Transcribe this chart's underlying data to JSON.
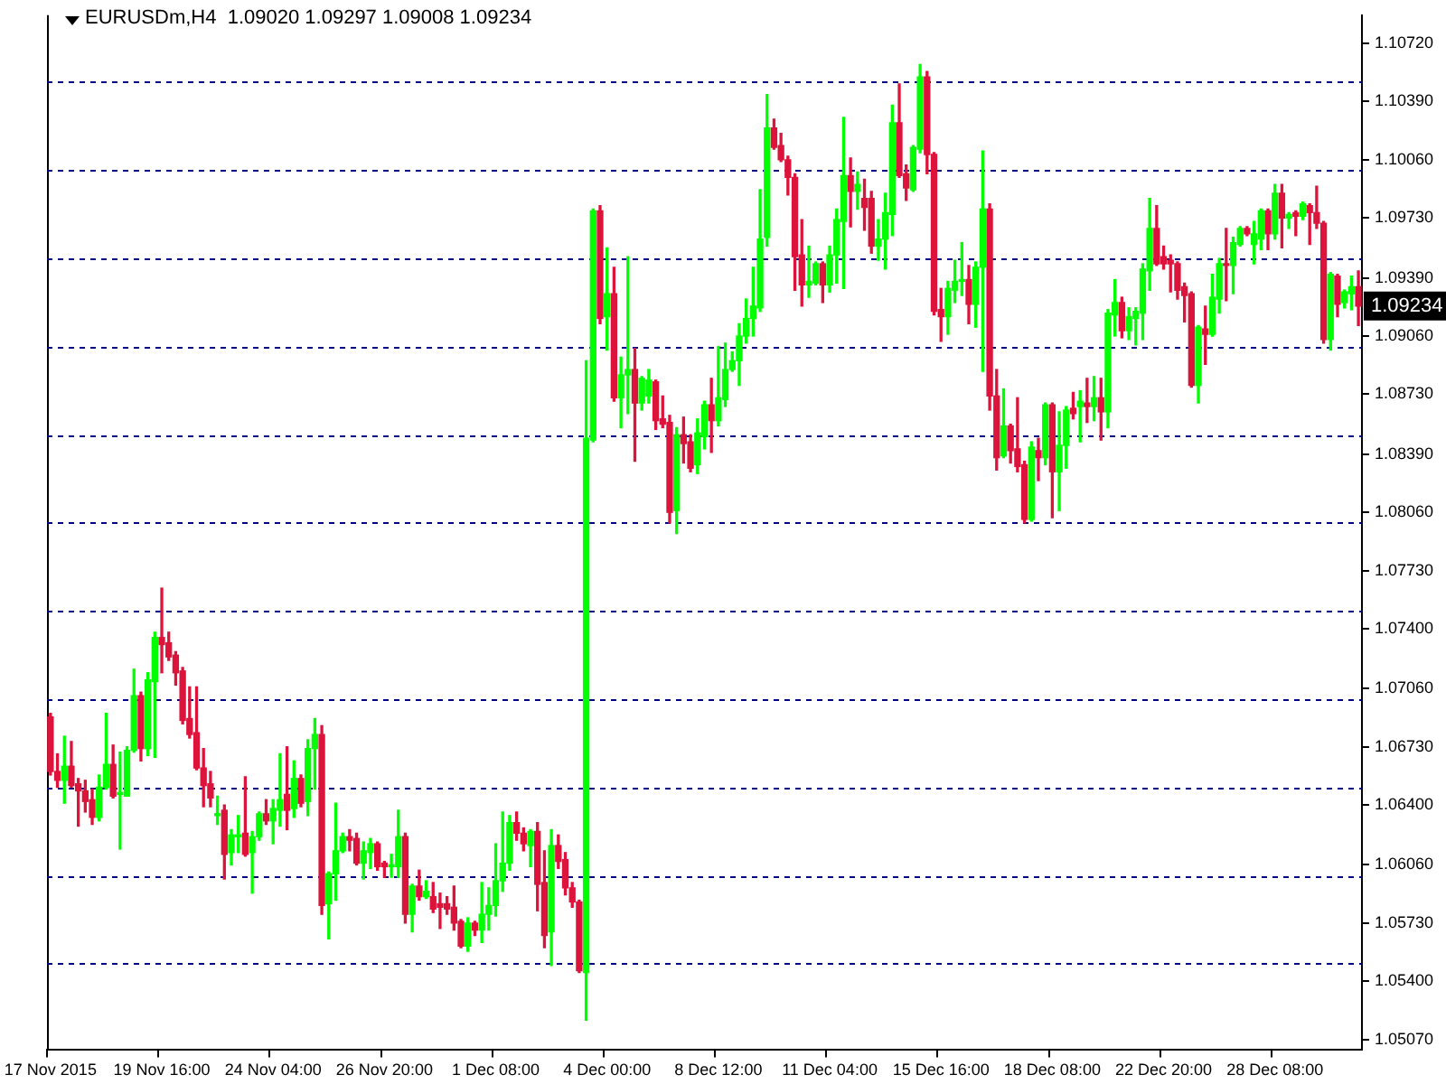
{
  "chart_data": {
    "type": "candlestick",
    "title": "EURUSDm,H4  1.09020 1.09297 1.09008 1.09234",
    "categories": [
      "17 Nov 2015",
      null,
      null,
      null,
      null,
      null,
      null,
      null,
      null,
      null,
      null,
      null,
      null,
      null,
      null,
      null,
      "19 Nov 16:00",
      null,
      null,
      null,
      null,
      null,
      null,
      null,
      null,
      null,
      null,
      null,
      null,
      null,
      null,
      null,
      "24 Nov 04:00",
      null,
      null,
      null,
      null,
      null,
      null,
      null,
      null,
      null,
      null,
      null,
      null,
      null,
      null,
      null,
      "26 Nov 20:00",
      null,
      null,
      null,
      null,
      null,
      null,
      null,
      null,
      null,
      null,
      null,
      null,
      null,
      null,
      null,
      "1 Dec 08:00",
      null,
      null,
      null,
      null,
      null,
      null,
      null,
      null,
      null,
      null,
      null,
      null,
      null,
      null,
      null,
      "4 Dec 00:00",
      null,
      null,
      null,
      null,
      null,
      null,
      null,
      null,
      null,
      null,
      null,
      null,
      null,
      null,
      null,
      "8 Dec 12:00",
      null,
      null,
      null,
      null,
      null,
      null,
      null,
      null,
      null,
      null,
      null,
      null,
      null,
      null,
      null,
      "11 Dec 04:00",
      null,
      null,
      null,
      null,
      null,
      null,
      null,
      null,
      null,
      null,
      null,
      null,
      null,
      null,
      null,
      "15 Dec 16:00",
      null,
      null,
      null,
      null,
      null,
      null,
      null,
      null,
      null,
      null,
      null,
      null,
      null,
      null,
      null,
      "18 Dec 08:00",
      null,
      null,
      null,
      null,
      null,
      null,
      null,
      null,
      null,
      null,
      null,
      null,
      null,
      null,
      null,
      "22 Dec 20:00",
      null,
      null,
      null,
      null,
      null,
      null,
      null,
      null,
      null,
      null,
      null,
      null,
      null,
      null,
      null,
      "28 Dec 08:00",
      null,
      null,
      null,
      null,
      null,
      null,
      null,
      null,
      null,
      null,
      null,
      null
    ],
    "ohlc": [
      [
        1.069,
        1.0692,
        1.0657,
        1.0659
      ],
      [
        1.0659,
        1.0669,
        1.065,
        1.0654
      ],
      [
        1.0654,
        1.0679,
        1.0641,
        1.0662
      ],
      [
        1.0662,
        1.0676,
        1.065,
        1.0651
      ],
      [
        1.0652,
        1.0655,
        1.0628,
        1.0648
      ],
      [
        1.0648,
        1.0654,
        1.0636,
        1.0642
      ],
      [
        1.0643,
        1.0649,
        1.0629,
        1.0633
      ],
      [
        1.0633,
        1.0657,
        1.0631,
        1.065
      ],
      [
        1.065,
        1.0692,
        1.0649,
        1.0663
      ],
      [
        1.0663,
        1.0674,
        1.0644,
        1.0645
      ],
      [
        1.0646,
        1.067,
        1.0615,
        1.0647
      ],
      [
        1.0645,
        1.0673,
        1.0645,
        1.0671
      ],
      [
        1.0671,
        1.0717,
        1.067,
        1.0702
      ],
      [
        1.0702,
        1.0704,
        1.0665,
        1.0672
      ],
      [
        1.0672,
        1.0715,
        1.0668,
        1.0711
      ],
      [
        1.071,
        1.0738,
        1.0667,
        1.0735
      ],
      [
        1.0735,
        1.0763,
        1.0715,
        1.0731
      ],
      [
        1.0732,
        1.0738,
        1.0722,
        1.0724
      ],
      [
        1.0725,
        1.0727,
        1.0708,
        1.0715
      ],
      [
        1.0716,
        1.0718,
        1.0686,
        1.0688
      ],
      [
        1.0689,
        1.0707,
        1.0678,
        1.068
      ],
      [
        1.0681,
        1.0707,
        1.066,
        1.0661
      ],
      [
        1.0661,
        1.0672,
        1.0639,
        1.0651
      ],
      [
        1.0652,
        1.0659,
        1.0639,
        1.0644
      ],
      [
        1.0634,
        1.0645,
        1.0629,
        1.0635
      ],
      [
        1.0637,
        1.064,
        1.0598,
        1.0612
      ],
      [
        1.0613,
        1.0626,
        1.0606,
        1.0623
      ],
      [
        1.0622,
        1.0634,
        1.0613,
        1.0623
      ],
      [
        1.0624,
        1.0656,
        1.0611,
        1.0612
      ],
      [
        1.0613,
        1.0625,
        1.059,
        1.0622
      ],
      [
        1.0622,
        1.0636,
        1.062,
        1.0635
      ],
      [
        1.0635,
        1.0643,
        1.0629,
        1.0631
      ],
      [
        1.0631,
        1.0643,
        1.0618,
        1.0638
      ],
      [
        1.0637,
        1.0669,
        1.0628,
        1.0643
      ],
      [
        1.0646,
        1.0673,
        1.0626,
        1.0637
      ],
      [
        1.0638,
        1.0665,
        1.0633,
        1.0655
      ],
      [
        1.0655,
        1.0657,
        1.0639,
        1.0641
      ],
      [
        1.0642,
        1.0677,
        1.0634,
        1.0672
      ],
      [
        1.0672,
        1.0689,
        1.0649,
        1.068
      ],
      [
        1.068,
        1.0685,
        1.0578,
        1.0583
      ],
      [
        1.0584,
        1.0602,
        1.0564,
        1.0601
      ],
      [
        1.0601,
        1.0641,
        1.0586,
        1.0614
      ],
      [
        1.0614,
        1.0624,
        1.0613,
        1.0622
      ],
      [
        1.0622,
        1.0626,
        1.0614,
        1.062
      ],
      [
        1.0621,
        1.0624,
        1.0606,
        1.0607
      ],
      [
        1.0607,
        1.0619,
        1.0598,
        1.0614
      ],
      [
        1.0613,
        1.0621,
        1.0604,
        1.0618
      ],
      [
        1.0618,
        1.0619,
        1.0603,
        1.0605
      ],
      [
        1.0607,
        1.0608,
        1.0599,
        1.0605
      ],
      [
        1.0605,
        1.0612,
        1.0599,
        1.0606
      ],
      [
        1.0605,
        1.0637,
        1.0599,
        1.0622
      ],
      [
        1.0622,
        1.0624,
        1.0573,
        1.0578
      ],
      [
        1.0578,
        1.0595,
        1.0568,
        1.0594
      ],
      [
        1.0594,
        1.0603,
        1.0586,
        1.0588
      ],
      [
        1.0588,
        1.0597,
        1.0587,
        1.0591
      ],
      [
        1.0588,
        1.0596,
        1.0579,
        1.0581
      ],
      [
        1.0584,
        1.059,
        1.057,
        1.0582
      ],
      [
        1.0584,
        1.0588,
        1.0578,
        1.0581
      ],
      [
        1.0582,
        1.0594,
        1.0569,
        1.0573
      ],
      [
        1.0574,
        1.0575,
        1.0559,
        1.056
      ],
      [
        1.056,
        1.0576,
        1.0557,
        1.0573
      ],
      [
        1.0573,
        1.0574,
        1.0566,
        1.0569
      ],
      [
        1.0569,
        1.0596,
        1.0562,
        1.0578
      ],
      [
        1.0578,
        1.0593,
        1.0569,
        1.0583
      ],
      [
        1.0583,
        1.0618,
        1.0577,
        1.0597
      ],
      [
        1.0597,
        1.0636,
        1.0591,
        1.0607
      ],
      [
        1.0607,
        1.0634,
        1.0603,
        1.063
      ],
      [
        1.063,
        1.0636,
        1.062,
        1.0624
      ],
      [
        1.0624,
        1.0627,
        1.0614,
        1.0618
      ],
      [
        1.0617,
        1.0626,
        1.0605,
        1.0625
      ],
      [
        1.0625,
        1.063,
        1.058,
        1.0595
      ],
      [
        1.0596,
        1.0614,
        1.0559,
        1.0566
      ],
      [
        1.0568,
        1.0626,
        1.0549,
        1.0617
      ],
      [
        1.0617,
        1.0623,
        1.0604,
        1.0608
      ],
      [
        1.0609,
        1.0613,
        1.0589,
        1.0593
      ],
      [
        1.0593,
        1.0596,
        1.0582,
        1.0585
      ],
      [
        1.0585,
        1.0586,
        1.0545,
        1.0546
      ],
      [
        1.0545,
        1.0892,
        1.0518,
        1.0848
      ],
      [
        1.0847,
        1.0978,
        1.0846,
        1.0977
      ],
      [
        1.0977,
        1.098,
        1.0913,
        1.0916
      ],
      [
        1.0917,
        1.0956,
        1.0898,
        1.093
      ],
      [
        1.093,
        1.0945,
        1.0869,
        1.0871
      ],
      [
        1.0871,
        1.0894,
        1.0854,
        1.0884
      ],
      [
        1.0884,
        1.0951,
        1.0862,
        1.0887
      ],
      [
        1.0887,
        1.0899,
        1.0835,
        1.0868
      ],
      [
        1.0868,
        1.0883,
        1.0864,
        1.0882
      ],
      [
        1.0872,
        1.0887,
        1.0868,
        1.0881
      ],
      [
        1.088,
        1.0881,
        1.0853,
        1.0858
      ],
      [
        1.0859,
        1.0872,
        1.0854,
        1.0856
      ],
      [
        1.0857,
        1.0861,
        1.08,
        1.0806
      ],
      [
        1.0807,
        1.0854,
        1.0794,
        1.085
      ],
      [
        1.085,
        1.086,
        1.0834,
        1.0845
      ],
      [
        1.0846,
        1.085,
        1.0829,
        1.0831
      ],
      [
        1.0833,
        1.0859,
        1.0828,
        1.0851
      ],
      [
        1.0849,
        1.0869,
        1.0842,
        1.0867
      ],
      [
        1.0867,
        1.0882,
        1.084,
        1.0858
      ],
      [
        1.0858,
        1.09,
        1.0855,
        1.0871
      ],
      [
        1.087,
        1.0902,
        1.0866,
        1.0887
      ],
      [
        1.0887,
        1.0897,
        1.0886,
        1.0892
      ],
      [
        1.0892,
        1.0913,
        1.0878,
        1.0906
      ],
      [
        1.0906,
        1.0927,
        1.0902,
        1.0916
      ],
      [
        1.0916,
        1.0945,
        1.0906,
        1.0923
      ],
      [
        1.0922,
        1.0989,
        1.092,
        1.0961
      ],
      [
        1.0962,
        1.1043,
        1.0957,
        1.1024
      ],
      [
        1.1024,
        1.1029,
        1.1012,
        1.1013
      ],
      [
        1.1014,
        1.1021,
        1.1005,
        1.1006
      ],
      [
        1.1006,
        1.1008,
        1.0986,
        1.0996
      ],
      [
        1.0996,
        1.0998,
        1.0932,
        1.0951
      ],
      [
        1.0952,
        1.0972,
        1.0923,
        1.0935
      ],
      [
        1.0935,
        1.0957,
        1.0928,
        1.0937
      ],
      [
        1.0936,
        1.0948,
        1.0935,
        1.0947
      ],
      [
        1.0947,
        1.0948,
        1.0925,
        1.0935
      ],
      [
        1.0935,
        1.0957,
        1.0931,
        1.0952
      ],
      [
        1.0952,
        1.0978,
        1.0936,
        1.0972
      ],
      [
        1.0971,
        1.103,
        1.0933,
        1.0997
      ],
      [
        1.0997,
        1.1007,
        1.0968,
        1.0988
      ],
      [
        1.0988,
        1.0999,
        1.0978,
        1.0992
      ],
      [
        1.0984,
        1.0995,
        1.0966,
        1.0979
      ],
      [
        1.0984,
        1.0988,
        1.0953,
        1.0957
      ],
      [
        1.0957,
        1.0972,
        1.0949,
        1.0961
      ],
      [
        1.0961,
        1.0987,
        1.0944,
        1.0976
      ],
      [
        1.0975,
        1.1037,
        1.0963,
        1.1027
      ],
      [
        1.1027,
        1.1049,
        1.0996,
        1.0997
      ],
      [
        1.0998,
        1.1003,
        1.0983,
        1.099
      ],
      [
        1.0989,
        1.1014,
        1.0988,
        1.1013
      ],
      [
        1.1012,
        1.106,
        1.101,
        1.1053
      ],
      [
        1.1053,
        1.1056,
        1.0998,
        1.1009
      ],
      [
        1.1009,
        1.101,
        1.0918,
        1.092
      ],
      [
        1.0921,
        1.0933,
        1.0903,
        1.0917
      ],
      [
        1.0917,
        1.0937,
        1.0907,
        1.0933
      ],
      [
        1.0932,
        1.0949,
        1.0925,
        1.0937
      ],
      [
        1.0937,
        1.0959,
        1.0929,
        1.0938
      ],
      [
        1.0938,
        1.0946,
        1.0913,
        1.0924
      ],
      [
        1.0924,
        1.0948,
        1.0911,
        1.0945
      ],
      [
        1.0945,
        1.1011,
        1.0886,
        1.0978
      ],
      [
        1.0978,
        1.0981,
        1.0864,
        1.0872
      ],
      [
        1.0872,
        1.0887,
        1.083,
        1.0837
      ],
      [
        1.0838,
        1.0876,
        1.0837,
        1.0855
      ],
      [
        1.0855,
        1.0856,
        1.0834,
        1.0841
      ],
      [
        1.0842,
        1.0871,
        1.0829,
        1.0832
      ],
      [
        1.0833,
        1.0835,
        1.08,
        1.0802
      ],
      [
        1.0802,
        1.0846,
        1.0801,
        1.0843
      ],
      [
        1.0841,
        1.0848,
        1.0824,
        1.0837
      ],
      [
        1.0837,
        1.0868,
        1.0833,
        1.0867
      ],
      [
        1.0867,
        1.0868,
        1.0803,
        1.0829
      ],
      [
        1.0829,
        1.0863,
        1.0807,
        1.0844
      ],
      [
        1.0844,
        1.0866,
        1.0831,
        1.0864
      ],
      [
        1.0865,
        1.0874,
        1.0859,
        1.0862
      ],
      [
        1.0866,
        1.0875,
        1.0846,
        1.0869
      ],
      [
        1.0868,
        1.0882,
        1.0857,
        1.0866
      ],
      [
        1.0866,
        1.0883,
        1.0858,
        1.0871
      ],
      [
        1.0871,
        1.0882,
        1.0847,
        1.0863
      ],
      [
        1.0863,
        1.0921,
        1.0854,
        1.0919
      ],
      [
        1.0918,
        1.0938,
        1.0906,
        1.0925
      ],
      [
        1.0925,
        1.0928,
        1.0905,
        1.0909
      ],
      [
        1.0909,
        1.0922,
        1.0904,
        1.0917
      ],
      [
        1.0916,
        1.0922,
        1.0901,
        1.092
      ],
      [
        1.0919,
        1.0947,
        1.0904,
        1.0944
      ],
      [
        1.0943,
        1.0984,
        1.0932,
        1.0967
      ],
      [
        1.0967,
        1.098,
        1.0946,
        1.0947
      ],
      [
        1.0951,
        1.0957,
        1.0944,
        1.0947
      ],
      [
        1.0949,
        1.0952,
        1.0931,
        1.0947
      ],
      [
        1.0947,
        1.0948,
        1.0927,
        1.0932
      ],
      [
        1.0934,
        1.0936,
        1.0914,
        1.0929
      ],
      [
        1.093,
        1.0931,
        1.0877,
        1.0878
      ],
      [
        1.0878,
        1.0912,
        1.0868,
        1.0911
      ],
      [
        1.091,
        1.0923,
        1.089,
        1.0907
      ],
      [
        1.0907,
        1.0941,
        1.0906,
        1.0928
      ],
      [
        1.0927,
        1.095,
        1.0919,
        1.0947
      ],
      [
        1.0947,
        1.0967,
        1.0926,
        1.0946
      ],
      [
        1.0946,
        1.0962,
        1.093,
        1.0959
      ],
      [
        1.0958,
        1.0968,
        1.0957,
        1.0967
      ],
      [
        1.0967,
        1.0968,
        1.0963,
        1.0964
      ],
      [
        1.0958,
        1.0971,
        1.0947,
        1.0964
      ],
      [
        1.0961,
        1.0978,
        1.0955,
        1.0977
      ],
      [
        1.0977,
        1.0978,
        1.0955,
        1.0964
      ],
      [
        1.0964,
        1.0992,
        1.0961,
        1.0987
      ],
      [
        1.0987,
        1.0992,
        1.0956,
        1.0973
      ],
      [
        1.0973,
        1.0976,
        1.0967,
        1.0975
      ],
      [
        1.0976,
        1.0977,
        1.0963,
        1.0974
      ],
      [
        1.0974,
        1.0982,
        1.0972,
        1.0981
      ],
      [
        1.098,
        1.0981,
        1.0958,
        1.0976
      ],
      [
        1.0976,
        1.0991,
        1.0967,
        1.097
      ],
      [
        1.097,
        1.0971,
        1.0902,
        1.0904
      ],
      [
        1.0904,
        1.0942,
        1.0898,
        1.0941
      ],
      [
        1.094,
        1.0941,
        1.0917,
        1.0924
      ],
      [
        1.0925,
        1.0932,
        1.0922,
        1.0931
      ],
      [
        1.093,
        1.094,
        1.0921,
        1.0934
      ],
      [
        1.0934,
        1.0943,
        1.0912,
        1.0923
      ]
    ],
    "colors": [
      "#dc143c",
      "#dc143c",
      "#00ff00",
      "#dc143c",
      "#dc143c",
      "#dc143c",
      "#dc143c",
      "#00ff00",
      "#00ff00",
      "#dc143c",
      "#00ff00",
      "#00ff00",
      "#00ff00",
      "#dc143c",
      "#00ff00",
      "#00ff00",
      "#dc143c",
      "#dc143c",
      "#dc143c",
      "#dc143c",
      "#dc143c",
      "#dc143c",
      "#dc143c",
      "#dc143c",
      "#00ff00",
      "#dc143c",
      "#00ff00",
      "#00ff00",
      "#dc143c",
      "#00ff00",
      "#00ff00",
      "#dc143c",
      "#00ff00",
      "#00ff00",
      "#dc143c",
      "#00ff00",
      "#dc143c",
      "#00ff00",
      "#00ff00",
      "#dc143c",
      "#00ff00",
      "#00ff00",
      "#00ff00",
      "#dc143c",
      "#dc143c",
      "#00ff00",
      "#00ff00",
      "#dc143c",
      "#dc143c",
      "#00ff00",
      "#00ff00",
      "#dc143c",
      "#00ff00",
      "#dc143c",
      "#00ff00",
      "#dc143c",
      "#dc143c",
      "#dc143c",
      "#dc143c",
      "#dc143c",
      "#00ff00",
      "#dc143c",
      "#00ff00",
      "#00ff00",
      "#00ff00",
      "#00ff00",
      "#00ff00",
      "#dc143c",
      "#dc143c",
      "#00ff00",
      "#dc143c",
      "#dc143c",
      "#00ff00",
      "#dc143c",
      "#dc143c",
      "#dc143c",
      "#dc143c",
      "#00ff00",
      "#00ff00",
      "#dc143c",
      "#00ff00",
      "#dc143c",
      "#00ff00",
      "#00ff00",
      "#dc143c",
      "#00ff00",
      "#00ff00",
      "#dc143c",
      "#dc143c",
      "#dc143c",
      "#00ff00",
      "#dc143c",
      "#dc143c",
      "#00ff00",
      "#00ff00",
      "#dc143c",
      "#00ff00",
      "#00ff00",
      "#00ff00",
      "#00ff00",
      "#00ff00",
      "#00ff00",
      "#00ff00",
      "#00ff00",
      "#dc143c",
      "#dc143c",
      "#dc143c",
      "#dc143c",
      "#dc143c",
      "#00ff00",
      "#00ff00",
      "#dc143c",
      "#00ff00",
      "#00ff00",
      "#00ff00",
      "#dc143c",
      "#00ff00",
      "#dc143c",
      "#dc143c",
      "#00ff00",
      "#00ff00",
      "#00ff00",
      "#dc143c",
      "#dc143c",
      "#00ff00",
      "#00ff00",
      "#dc143c",
      "#dc143c",
      "#dc143c",
      "#00ff00",
      "#00ff00",
      "#00ff00",
      "#dc143c",
      "#00ff00",
      "#00ff00",
      "#dc143c",
      "#dc143c",
      "#00ff00",
      "#dc143c",
      "#dc143c",
      "#dc143c",
      "#00ff00",
      "#dc143c",
      "#00ff00",
      "#dc143c",
      "#00ff00",
      "#00ff00",
      "#dc143c",
      "#00ff00",
      "#dc143c",
      "#00ff00",
      "#dc143c",
      "#00ff00",
      "#00ff00",
      "#dc143c",
      "#00ff00",
      "#00ff00",
      "#00ff00",
      "#00ff00",
      "#dc143c",
      "#dc143c",
      "#dc143c",
      "#dc143c",
      "#dc143c",
      "#dc143c",
      "#00ff00",
      "#dc143c",
      "#00ff00",
      "#00ff00",
      "#dc143c",
      "#00ff00",
      "#00ff00",
      "#dc143c",
      "#00ff00",
      "#00ff00",
      "#dc143c",
      "#00ff00",
      "#dc143c",
      "#00ff00",
      "#dc143c",
      "#00ff00",
      "#dc143c",
      "#dc143c",
      "#dc143c",
      "#00ff00",
      "#dc143c",
      "#00ff00",
      "#00ff00",
      "#dc143c"
    ],
    "ylim": [
      1.0501,
      1.1088
    ],
    "yticks": [
      {
        "value": 1.1072,
        "label": "1.10720"
      },
      {
        "value": 1.1039,
        "label": "1.10390"
      },
      {
        "value": 1.1006,
        "label": "1.10060"
      },
      {
        "value": 1.0973,
        "label": "1.09730"
      },
      {
        "value": 1.0939,
        "label": "1.09390"
      },
      {
        "value": 1.0906,
        "label": "1.09060"
      },
      {
        "value": 1.0873,
        "label": "1.08730"
      },
      {
        "value": 1.0839,
        "label": "1.08390"
      },
      {
        "value": 1.0806,
        "label": "1.08060"
      },
      {
        "value": 1.0773,
        "label": "1.07730"
      },
      {
        "value": 1.074,
        "label": "1.07400"
      },
      {
        "value": 1.0706,
        "label": "1.07060"
      },
      {
        "value": 1.0673,
        "label": "1.06730"
      },
      {
        "value": 1.064,
        "label": "1.06400"
      },
      {
        "value": 1.0606,
        "label": "1.06060"
      },
      {
        "value": 1.0573,
        "label": "1.05730"
      },
      {
        "value": 1.054,
        "label": "1.05400"
      },
      {
        "value": 1.0507,
        "label": "1.05070"
      }
    ],
    "ref_lines": [
      {
        "axis": "y",
        "value": 1.105,
        "color": "#000080",
        "line_style": "dashed"
      },
      {
        "axis": "y",
        "value": 1.1,
        "color": "#000080",
        "line_style": "dashed"
      },
      {
        "axis": "y",
        "value": 1.095,
        "color": "#000080",
        "line_style": "dashed"
      },
      {
        "axis": "y",
        "value": 1.09,
        "color": "#000080",
        "line_style": "dashed"
      },
      {
        "axis": "y",
        "value": 1.085,
        "color": "#000080",
        "line_style": "dashed"
      },
      {
        "axis": "y",
        "value": 1.08,
        "color": "#000080",
        "line_style": "dashed"
      },
      {
        "axis": "y",
        "value": 1.075,
        "color": "#000080",
        "line_style": "dashed"
      },
      {
        "axis": "y",
        "value": 1.07,
        "color": "#000080",
        "line_style": "dashed"
      },
      {
        "axis": "y",
        "value": 1.065,
        "color": "#000080",
        "line_style": "dashed"
      },
      {
        "axis": "y",
        "value": 1.06,
        "color": "#000080",
        "line_style": "dashed"
      },
      {
        "axis": "y",
        "value": 1.055,
        "color": "#000080",
        "line_style": "dashed"
      }
    ],
    "annotations": [
      "1.09234"
    ]
  }
}
